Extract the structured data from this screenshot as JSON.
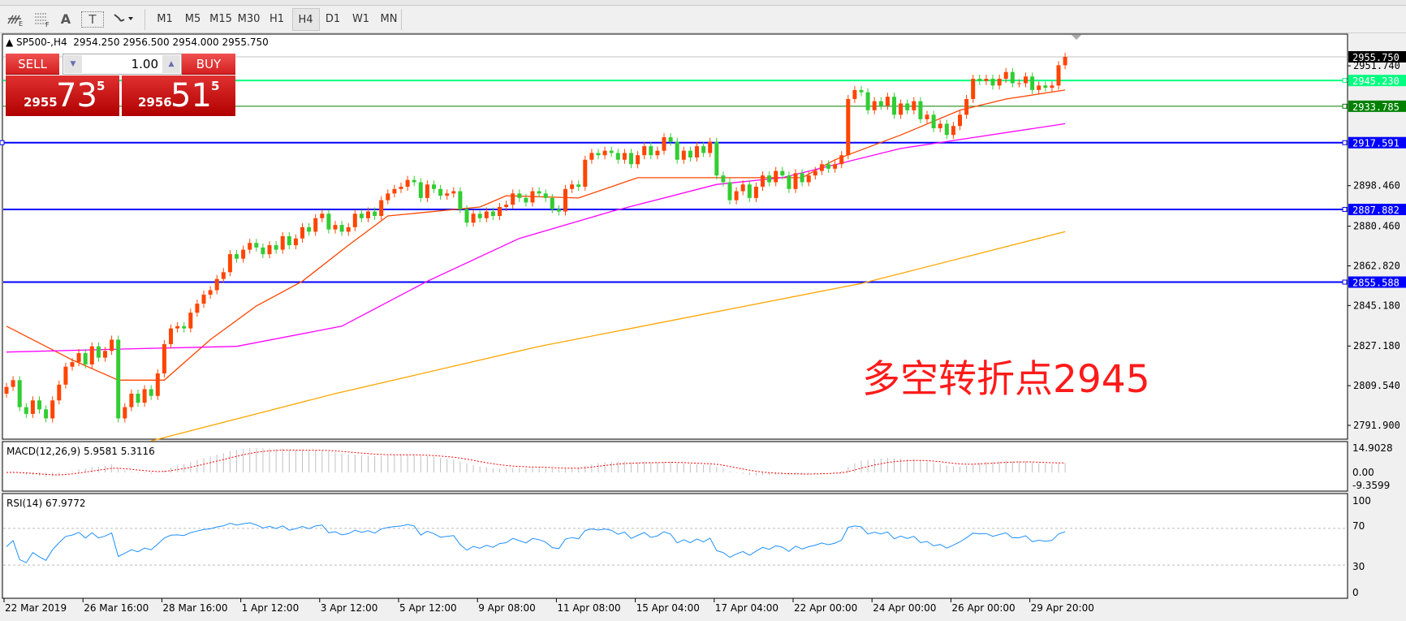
{
  "toolbar": {
    "tools": [
      {
        "icon": "chart-objects-icon",
        "label": ""
      },
      {
        "icon": "fibonacci-icon",
        "label": ""
      },
      {
        "icon": "text-icon",
        "label": "A"
      },
      {
        "icon": "text-label-icon",
        "label": "T"
      },
      {
        "icon": "arrows-dropdown-icon",
        "label": ""
      }
    ],
    "timeframes": [
      "M1",
      "M5",
      "M15",
      "M30",
      "H1",
      "H4",
      "D1",
      "W1",
      "MN"
    ],
    "selected_timeframe": "H4"
  },
  "chart_header": {
    "symbol": "SP500-,H4",
    "open": "2954.250",
    "high": "2956.500",
    "low": "2954.000",
    "close": "2955.750"
  },
  "trade_panel": {
    "sell_label": "SELL",
    "buy_label": "BUY",
    "lot": "1.00",
    "sell_price": {
      "small": "2955",
      "large": "73",
      "sup": "5"
    },
    "buy_price": {
      "small": "2956",
      "large": "51",
      "sup": "5"
    }
  },
  "annotation": "多空转折点2945",
  "colors": {
    "bull": "#FF4500",
    "bear": "#32CD32",
    "ma_fast": "#FF4500",
    "ma_mid": "#FF00FF",
    "ma_slow": "#FFA500",
    "rsi": "#1E90FF",
    "macd_hist": "#C0C0C0",
    "macd_signal": "#FF0000"
  },
  "chart_data": {
    "type": "candlestick",
    "symbol": "SP500-",
    "timeframe": "H4",
    "ylim": [
      2791.9,
      2955.75
    ],
    "y_ticks": [
      "2951.740",
      "2898.460",
      "2880.460",
      "2862.820",
      "2845.180",
      "2827.180",
      "2809.540",
      "2791.900"
    ],
    "x_tick_labels": [
      "22 Mar 2019",
      "26 Mar 16:00",
      "28 Mar 16:00",
      "1 Apr 12:00",
      "3 Apr 12:00",
      "5 Apr 12:00",
      "9 Apr 08:00",
      "11 Apr 08:00",
      "15 Apr 04:00",
      "17 Apr 04:00",
      "22 Apr 00:00",
      "24 Apr 00:00",
      "26 Apr 00:00",
      "29 Apr 20:00"
    ],
    "closes": [
      2809,
      2812,
      2800,
      2797,
      2803,
      2799,
      2795,
      2803,
      2810,
      2818,
      2820,
      2824,
      2819,
      2827,
      2822,
      2825,
      2830,
      2795,
      2800,
      2806,
      2802,
      2808,
      2805,
      2815,
      2828,
      2835,
      2836,
      2835,
      2842,
      2846,
      2850,
      2852,
      2857,
      2860,
      2868,
      2866,
      2870,
      2873,
      2871,
      2868,
      2872,
      2870,
      2876,
      2872,
      2875,
      2880,
      2878,
      2884,
      2886,
      2879,
      2881,
      2878,
      2880,
      2886,
      2884,
      2887,
      2885,
      2892,
      2895,
      2897,
      2898,
      2901,
      2900,
      2893,
      2899,
      2897,
      2894,
      2895,
      2896,
      2888,
      2882,
      2886,
      2884,
      2887,
      2885,
      2889,
      2890,
      2895,
      2893,
      2891,
      2896,
      2895,
      2893,
      2888,
      2887,
      2897,
      2899,
      2898,
      2910,
      2913,
      2912,
      2914,
      2913,
      2910,
      2913,
      2908,
      2912,
      2916,
      2912,
      2914,
      2920,
      2918,
      2910,
      2914,
      2911,
      2916,
      2913,
      2918,
      2903,
      2900,
      2892,
      2896,
      2899,
      2893,
      2898,
      2903,
      2900,
      2905,
      2903,
      2897,
      2904,
      2900,
      2903,
      2905,
      2908,
      2906,
      2908,
      2912,
      2937,
      2941,
      2940,
      2932,
      2936,
      2934,
      2938,
      2930,
      2935,
      2932,
      2936,
      2928,
      2930,
      2924,
      2926,
      2921,
      2925,
      2930,
      2937,
      2946,
      2945,
      2946,
      2943,
      2946,
      2949,
      2944,
      2944,
      2947,
      2941,
      2943,
      2942,
      2943,
      2952,
      2955.75
    ],
    "moving_averages": [
      {
        "color": "#FF4500",
        "points": [
          [
            0,
            2836
          ],
          [
            10,
            2821
          ],
          [
            17,
            2812
          ],
          [
            24,
            2812
          ],
          [
            31,
            2830
          ],
          [
            38,
            2845
          ],
          [
            45,
            2856
          ],
          [
            52,
            2872
          ],
          [
            58,
            2885
          ],
          [
            72,
            2889
          ],
          [
            76,
            2894
          ],
          [
            87,
            2893
          ],
          [
            96,
            2902
          ],
          [
            108,
            2902
          ],
          [
            121,
            2902
          ],
          [
            126,
            2910
          ],
          [
            136,
            2921
          ],
          [
            145,
            2932
          ],
          [
            152,
            2937
          ],
          [
            161,
            2941
          ]
        ]
      },
      {
        "color": "#FF00FF",
        "points": [
          [
            0,
            2824.5
          ],
          [
            20,
            2826
          ],
          [
            35,
            2827
          ],
          [
            51,
            2836
          ],
          [
            64,
            2856
          ],
          [
            78,
            2875
          ],
          [
            92,
            2887
          ],
          [
            108,
            2899
          ],
          [
            118,
            2902
          ],
          [
            136,
            2915
          ],
          [
            161,
            2926
          ]
        ]
      },
      {
        "color": "#FFA500",
        "points": [
          [
            22,
            2785
          ],
          [
            50,
            2806
          ],
          [
            81,
            2827
          ],
          [
            130,
            2855
          ],
          [
            161,
            2878
          ]
        ]
      }
    ],
    "horizontal_lines": [
      {
        "value": "2955.750",
        "color": "#C0C0C0",
        "label_bg": "#000000"
      },
      {
        "value": "2945.230",
        "color": "#00FF7F",
        "label_bg": "#00FF7F"
      },
      {
        "value": "2933.785",
        "color": "#008000",
        "label_bg": "#008000"
      },
      {
        "value": "2917.591",
        "color": "#0000FF",
        "label_bg": "#0000FF"
      },
      {
        "value": "2887.882",
        "color": "#0000FF",
        "label_bg": "#0000FF"
      },
      {
        "value": "2855.588",
        "color": "#0000FF",
        "label_bg": "#0000FF"
      }
    ],
    "macd": {
      "label": "MACD(12,26,9) 5.9581 5.3116",
      "ticks": [
        "14.9028",
        "0.00",
        "-9.3599"
      ],
      "range": [
        -9.3599,
        14.9028
      ]
    },
    "rsi": {
      "label": "RSI(14) 67.9772",
      "ticks": [
        "100",
        "70",
        "30",
        "0"
      ],
      "levels": [
        70,
        30
      ]
    }
  }
}
